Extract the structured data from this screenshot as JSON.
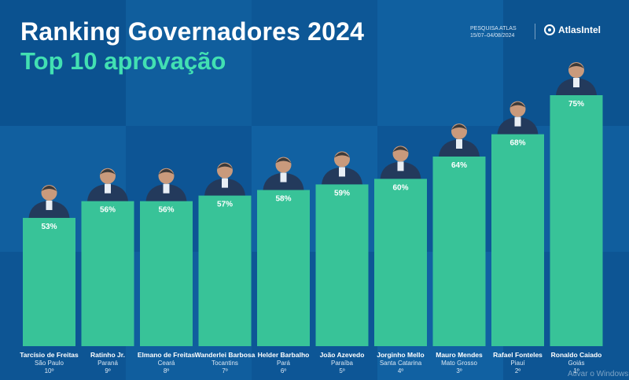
{
  "header": {
    "title": "Ranking Governadores 2024",
    "subtitle": "Top 10 aprovação",
    "source_line1": "PESQUISA ATLAS",
    "source_line2": "15/07–04/08/2024",
    "brand": "AtlasIntel"
  },
  "chart_data": {
    "type": "bar",
    "title": "Ranking Governadores 2024",
    "subtitle": "Top 10 aprovação",
    "categories": [
      "Tarcísio de Freitas",
      "Ratinho Jr.",
      "Elmano de Freitas",
      "Wanderlei Barbosa",
      "Helder Barbalho",
      "João Azevedo",
      "Jorginho Mello",
      "Mauro Mendes",
      "Rafael Fonteles",
      "Ronaldo Caiado"
    ],
    "states": [
      "São Paulo",
      "Paraná",
      "Ceará",
      "Tocantins",
      "Pará",
      "Paraíba",
      "Santa Catarina",
      "Mato Grosso",
      "Piauí",
      "Goiás"
    ],
    "ranks": [
      "10º",
      "9º",
      "8º",
      "7º",
      "6º",
      "5º",
      "4º",
      "3º",
      "2º",
      "1º"
    ],
    "values": [
      53,
      56,
      56,
      57,
      58,
      59,
      60,
      64,
      68,
      75
    ],
    "value_labels": [
      "53%",
      "56%",
      "56%",
      "57%",
      "58%",
      "59%",
      "60%",
      "64%",
      "68%",
      "75%"
    ],
    "xlabel": "",
    "ylabel": "",
    "ylim": [
      0,
      75
    ],
    "colors": {
      "bar": "#38c398",
      "label": "#ffffff",
      "name": "#ffffff"
    }
  },
  "watermark": "Ativar o Windows"
}
